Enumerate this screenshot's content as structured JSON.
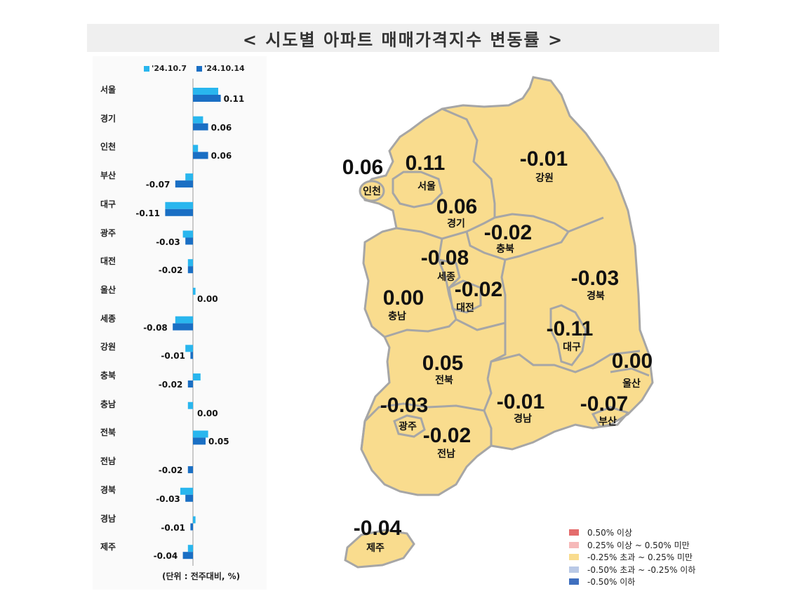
{
  "title": "< 시도별 아파트 매매가격지수 변동률 >",
  "unit_note": "(단위 : 전주대비, %)",
  "colors": {
    "series_prev": "#29b6ee",
    "series_curr": "#1a6fc4",
    "map_fill": "#f9dc8e",
    "map_stroke": "#a6a6a6"
  },
  "chart_data": {
    "type": "bar",
    "orientation": "horizontal",
    "categories": [
      "서울",
      "경기",
      "인천",
      "부산",
      "대구",
      "광주",
      "대전",
      "울산",
      "세종",
      "강원",
      "충북",
      "충남",
      "전북",
      "전남",
      "경북",
      "경남",
      "제주"
    ],
    "series": [
      {
        "name": "'24.10.7",
        "values": [
          0.1,
          0.04,
          0.02,
          -0.03,
          -0.11,
          -0.04,
          -0.02,
          0.01,
          -0.07,
          -0.03,
          0.03,
          -0.02,
          0.06,
          0.0,
          -0.05,
          0.01,
          -0.02
        ]
      },
      {
        "name": "'24.10.14",
        "values": [
          0.11,
          0.06,
          0.06,
          -0.07,
          -0.11,
          -0.03,
          -0.02,
          0.0,
          -0.08,
          -0.01,
          -0.02,
          0.0,
          0.05,
          -0.02,
          -0.03,
          -0.01,
          -0.04
        ]
      }
    ],
    "value_labels": [
      "0.11",
      "0.06",
      "0.06",
      "-0.07",
      "-0.11",
      "-0.03",
      "-0.02",
      "0.00",
      "-0.08",
      "-0.01",
      "-0.02",
      "0.00",
      "0.05",
      "-0.02",
      "-0.03",
      "-0.01",
      "-0.04"
    ],
    "legend_position": "top"
  },
  "map": {
    "regions": [
      {
        "name": "인천",
        "value": "0.06"
      },
      {
        "name": "서울",
        "value": "0.11"
      },
      {
        "name": "강원",
        "value": "-0.01"
      },
      {
        "name": "경기",
        "value": "0.06"
      },
      {
        "name": "충북",
        "value": "-0.02"
      },
      {
        "name": "세종",
        "value": "-0.08"
      },
      {
        "name": "대전",
        "value": "-0.02"
      },
      {
        "name": "충남",
        "value": "0.00"
      },
      {
        "name": "경북",
        "value": "-0.03"
      },
      {
        "name": "대구",
        "value": "-0.11"
      },
      {
        "name": "울산",
        "value": "0.00"
      },
      {
        "name": "전북",
        "value": "0.05"
      },
      {
        "name": "경남",
        "value": "-0.01"
      },
      {
        "name": "부산",
        "value": "-0.07"
      },
      {
        "name": "광주",
        "value": "-0.03"
      },
      {
        "name": "전남",
        "value": "-0.02"
      },
      {
        "name": "제주",
        "value": "-0.04"
      }
    ],
    "legend": [
      {
        "label": "0.50% 이상",
        "color": "#e46c6c"
      },
      {
        "label": "0.25% 이상 ~ 0.50% 미만",
        "color": "#f6b9b9"
      },
      {
        "label": "-0.25% 초과 ~ 0.25% 미만",
        "color": "#f9dc8e"
      },
      {
        "label": "-0.50% 초과 ~ -0.25% 이하",
        "color": "#b9c9e6"
      },
      {
        "label": "-0.50% 이하",
        "color": "#3f6fbf"
      }
    ]
  }
}
